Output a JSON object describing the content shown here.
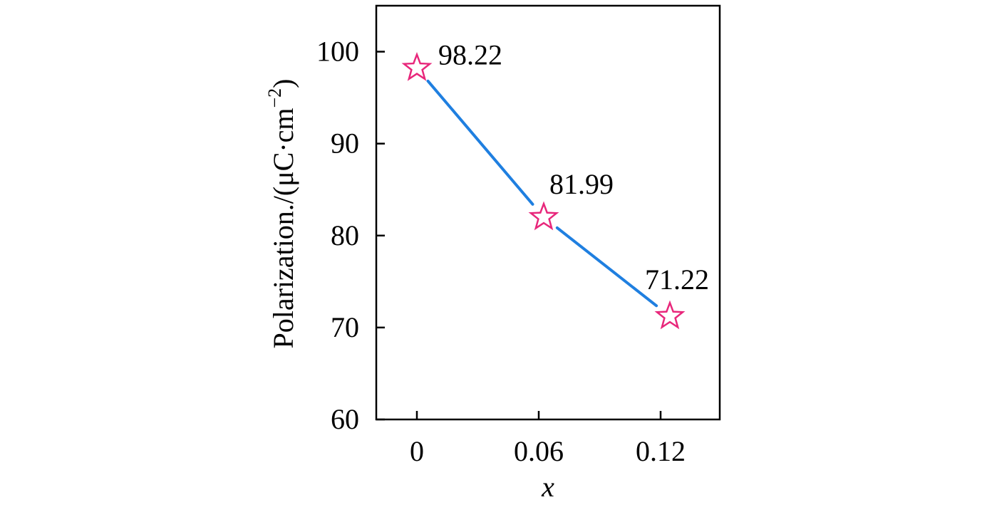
{
  "chart_data": {
    "type": "line",
    "x": [
      "0",
      "0.06",
      "0.12"
    ],
    "series": [
      {
        "values": [
          98.22,
          81.99,
          71.22
        ],
        "data_labels": [
          "98.22",
          "81.99",
          "71.22"
        ],
        "line_color": "#1f7fe0",
        "marker_color": "#e8277b",
        "marker": "star-outline"
      }
    ],
    "xlabel": "x",
    "ylabel": "Polarization./(μC·cm⁻²)",
    "ylabel_main": "Polarization./(μC·cm",
    "ylabel_sup": "−2",
    "ylabel_close": ")",
    "xticks": [
      "0",
      "0.06",
      "0.12"
    ],
    "yticks": [
      "60",
      "70",
      "80",
      "90",
      "100"
    ],
    "ytick_values": [
      60,
      70,
      80,
      90,
      100
    ],
    "ylim": [
      60,
      105
    ],
    "grid": false,
    "legend": "none"
  }
}
